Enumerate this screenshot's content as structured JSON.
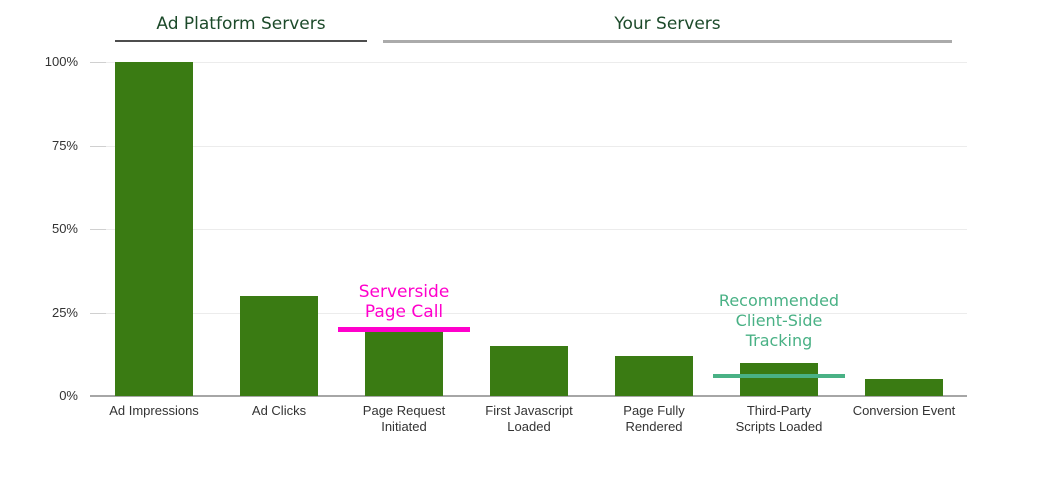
{
  "page": {
    "background": "#FFFFFF"
  },
  "chart_data": {
    "type": "bar",
    "title": "",
    "xlabel": "",
    "ylabel": "",
    "value_unit": "%",
    "ylim": [
      0,
      100
    ],
    "grid": true,
    "legend": null,
    "categories": [
      "Ad Impressions",
      "Ad Clicks",
      "Page Request Initiated",
      "First Javascript Loaded",
      "Page Fully Rendered",
      "Third-Party Scripts Loaded",
      "Conversion Event"
    ],
    "category_label_lines": [
      [
        "Ad Impressions"
      ],
      [
        "Ad Clicks"
      ],
      [
        "Page Request",
        "Initiated"
      ],
      [
        "First Javascript",
        "Loaded"
      ],
      [
        "Page Fully",
        "Rendered"
      ],
      [
        "Third-Party",
        "Scripts Loaded"
      ],
      [
        "Conversion Event"
      ]
    ],
    "values": [
      100,
      30,
      20,
      15,
      12,
      10,
      5
    ],
    "yticks": [
      {
        "value": 100,
        "label": "100%"
      },
      {
        "value": 75,
        "label": "75%"
      },
      {
        "value": 50,
        "label": "50%"
      },
      {
        "value": 25,
        "label": "25%"
      },
      {
        "value": 0,
        "label": "0%"
      }
    ],
    "colors": {
      "bar": "#3A7B13",
      "header_text": "#1C4A2A",
      "axis_label": "#333333",
      "gridline": "#ECECEC",
      "axis_line": "#A6A6A6"
    },
    "group_headers": [
      {
        "label": "Ad Platform Servers",
        "category_start": 0,
        "category_end": 1,
        "underline_color": "#4D4D4D"
      },
      {
        "label": "Your Servers",
        "category_start": 2,
        "category_end": 6,
        "underline_color": "#ABABAB"
      }
    ],
    "annotations": [
      {
        "text_lines": [
          "Serverside",
          "Page Call"
        ],
        "color": "#FF00CC",
        "target_category": "Page Request Initiated",
        "target_category_index": 2,
        "line_value_pct": 20
      },
      {
        "text_lines": [
          "Recommended",
          "Client-Side",
          "Tracking"
        ],
        "color": "#49B185",
        "target_category": "Third-Party Scripts Loaded",
        "target_category_index": 5,
        "line_value_pct": 6
      }
    ]
  }
}
